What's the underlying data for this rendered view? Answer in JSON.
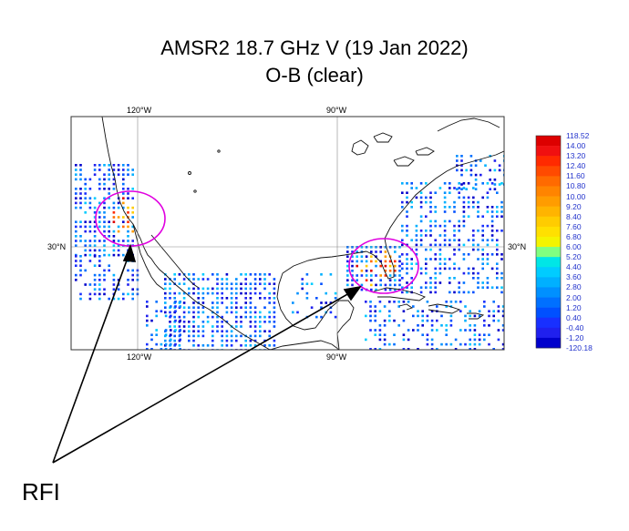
{
  "title_line1": "AMSR2 18.7 GHz V (19 Jan 2022)",
  "title_line2": "O-B (clear)",
  "map": {
    "lon_labels": [
      "120°W",
      "90°W"
    ],
    "lat_labels": [
      "30°N",
      "30°N"
    ]
  },
  "colorbar": {
    "labels": [
      "118.52",
      "14.00",
      "13.20",
      "12.40",
      "11.60",
      "10.80",
      "10.00",
      "9.20",
      "8.40",
      "7.60",
      "6.80",
      "6.00",
      "5.20",
      "4.40",
      "3.60",
      "2.80",
      "2.00",
      "1.20",
      "0.40",
      "-0.40",
      "-1.20",
      "-120.18"
    ],
    "colors": [
      "#dd0000",
      "#f01010",
      "#ff2a00",
      "#ff4a00",
      "#ff6a00",
      "#ff8400",
      "#ff9c00",
      "#ffb400",
      "#ffcc00",
      "#ffe000",
      "#f4f400",
      "#80ff80",
      "#00e6e6",
      "#00ccff",
      "#00b0ff",
      "#0090ff",
      "#0070ff",
      "#0050ff",
      "#1830ff",
      "#2020ee",
      "#0000cc"
    ]
  },
  "annotation": {
    "label": "RFI",
    "circle_color": "#e000e0",
    "arrow_color": "#000000"
  }
}
